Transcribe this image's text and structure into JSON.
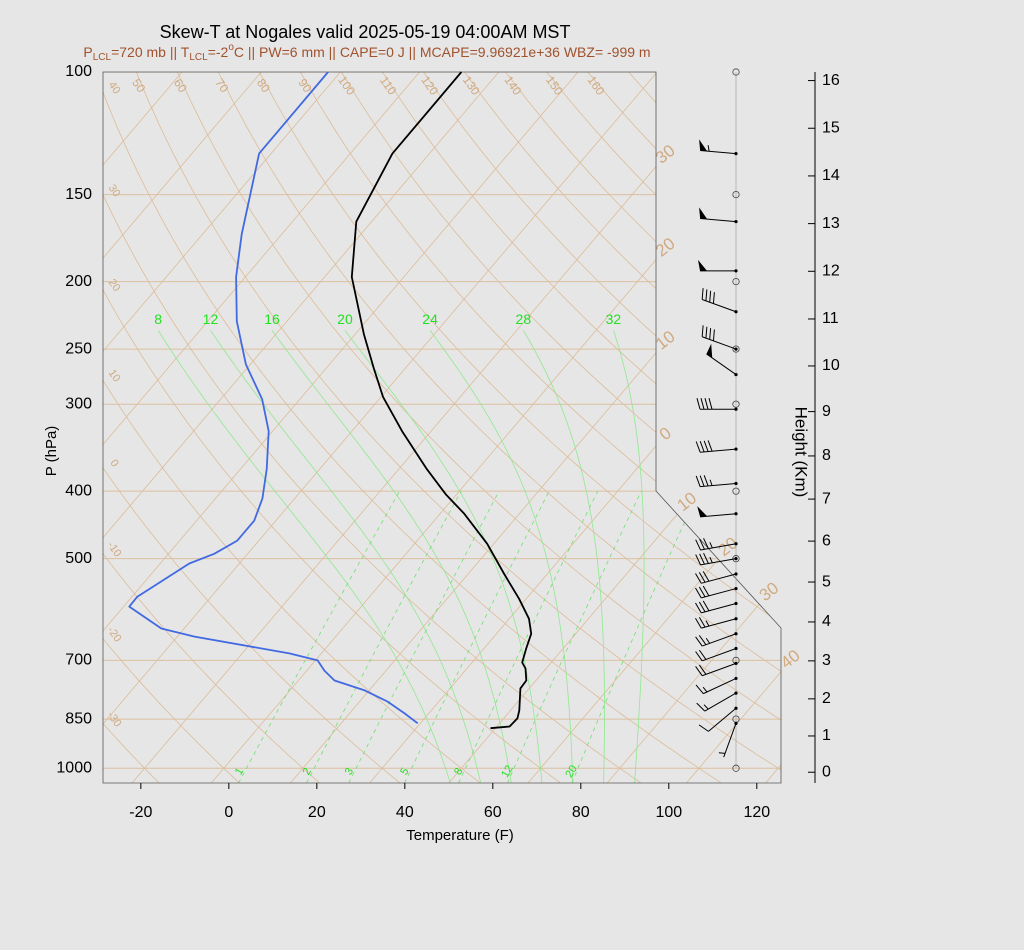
{
  "chart_data": {
    "type": "skewt",
    "title": "Skew-T at Nogales valid 2025-05-19 04:00AM MST",
    "subtitle": [
      {
        "text": "P"
      },
      {
        "text": "LCL",
        "shift": "sub"
      },
      {
        "text": "=720 mb || T"
      },
      {
        "text": "LCL",
        "shift": "sub"
      },
      {
        "text": "=-2"
      },
      {
        "text": "o",
        "shift": "sup"
      },
      {
        "text": "C || PW=6 mm || CAPE=0 J || MCAPE=9.96921e+36 WBZ= -999 m"
      }
    ],
    "subtitle_color": "#a0522d",
    "xlabel": "Temperature (F)",
    "ylabel": "P (hPa)",
    "y2label": "Height (Km)",
    "xlim": [
      -28.6,
      125.5
    ],
    "xticks": [
      -20,
      0,
      20,
      40,
      60,
      80,
      100,
      120
    ],
    "ylim": [
      1050,
      100
    ],
    "yticks": [
      100,
      150,
      200,
      250,
      300,
      400,
      500,
      700,
      850,
      1000
    ],
    "y2ticks": [
      0,
      1,
      2,
      3,
      4,
      5,
      6,
      7,
      8,
      9,
      10,
      11,
      12,
      13,
      14,
      15,
      16
    ],
    "isobar_color": "#dcc0a0",
    "isotherms": {
      "color": "#dcbc98",
      "label_color": "#d0aa80",
      "values": [
        -110,
        -100,
        -90,
        -80,
        -70,
        -60,
        -50,
        -40,
        -30,
        -20,
        -10,
        0,
        10,
        20,
        30,
        40,
        50
      ],
      "labels": [
        {
          "value": -30,
          "label": "30"
        },
        {
          "value": -20,
          "label": "20"
        },
        {
          "value": -10,
          "label": "10"
        },
        0,
        10,
        20,
        30,
        40
      ]
    },
    "dry_adiabats": {
      "color": "#dcbc98",
      "label_color": "#d0aa80",
      "values": [
        -40,
        -30,
        -20,
        -10,
        0,
        10,
        20,
        30,
        40,
        50,
        60,
        70,
        80,
        90,
        100,
        110,
        120,
        130,
        140,
        150,
        160,
        170
      ],
      "left_labels": [
        -30,
        -20,
        -10,
        0,
        10,
        20,
        30,
        40
      ],
      "top_labels": [
        50,
        60,
        70,
        80,
        90,
        100,
        110,
        120,
        130,
        140,
        150,
        160
      ]
    },
    "moist_adiabats": {
      "color": "#90e890",
      "label_color": "#22e022",
      "values": [
        8,
        12,
        16,
        20,
        24,
        28,
        32
      ]
    },
    "mixing_ratio": {
      "color": "#70e070",
      "label_color": "#22e022",
      "values": [
        1,
        2,
        3,
        5,
        8,
        12,
        20
      ]
    },
    "temperature": {
      "color": "#000000",
      "pressure": [
        876,
        871,
        848,
        826,
        768,
        748,
        719,
        705,
        673,
        641,
        610,
        571,
        526,
        476,
        431,
        404,
        372,
        328,
        293,
        267,
        238,
        197,
        164,
        131,
        100
      ],
      "values": [
        48.9,
        52.9,
        53.1,
        52.0,
        48.0,
        47.8,
        45.3,
        43.4,
        41.6,
        39.9,
        36.5,
        30.4,
        22.2,
        12.5,
        1.5,
        -6.5,
        -15.6,
        -28.6,
        -39.5,
        -47.0,
        -56.0,
        -69.8,
        -79.5,
        -84.4,
        -84.5
      ]
    },
    "dewpoint": {
      "color": "#4169e1",
      "pressure": [
        862,
        834,
        802,
        773,
        748,
        724,
        700,
        684,
        647,
        630,
        586,
        567,
        508,
        492,
        471,
        441,
        410,
        372,
        328,
        295,
        263,
        228,
        197,
        171,
        131,
        100
      ],
      "values": [
        31.4,
        26.5,
        20.3,
        13.0,
        4.2,
        0.0,
        -3.5,
        -11.3,
        -36.1,
        -45.2,
        -56.7,
        -56.8,
        -51.4,
        -47.6,
        -44.9,
        -44.9,
        -47.3,
        -52.0,
        -58.9,
        -66.6,
        -77.0,
        -87.4,
        -96.1,
        -103.1,
        -114.7,
        -114.8
      ]
    },
    "wind": {
      "color": "#000000",
      "pressure": [
        862,
        820,
        780,
        743,
        707,
        673,
        641,
        610,
        580,
        552,
        526,
        500,
        476,
        431,
        390,
        348,
        305,
        272,
        250,
        221,
        193,
        164,
        131
      ],
      "speed": [
        5,
        10,
        15,
        15,
        20,
        20,
        25,
        25,
        30,
        30,
        30,
        35,
        35,
        50,
        35,
        40,
        40,
        50,
        40,
        40,
        50,
        50,
        55
      ],
      "direction": [
        200,
        230,
        240,
        245,
        250,
        250,
        250,
        255,
        255,
        255,
        255,
        260,
        260,
        265,
        265,
        265,
        270,
        305,
        290,
        290,
        270,
        275,
        275
      ]
    }
  }
}
